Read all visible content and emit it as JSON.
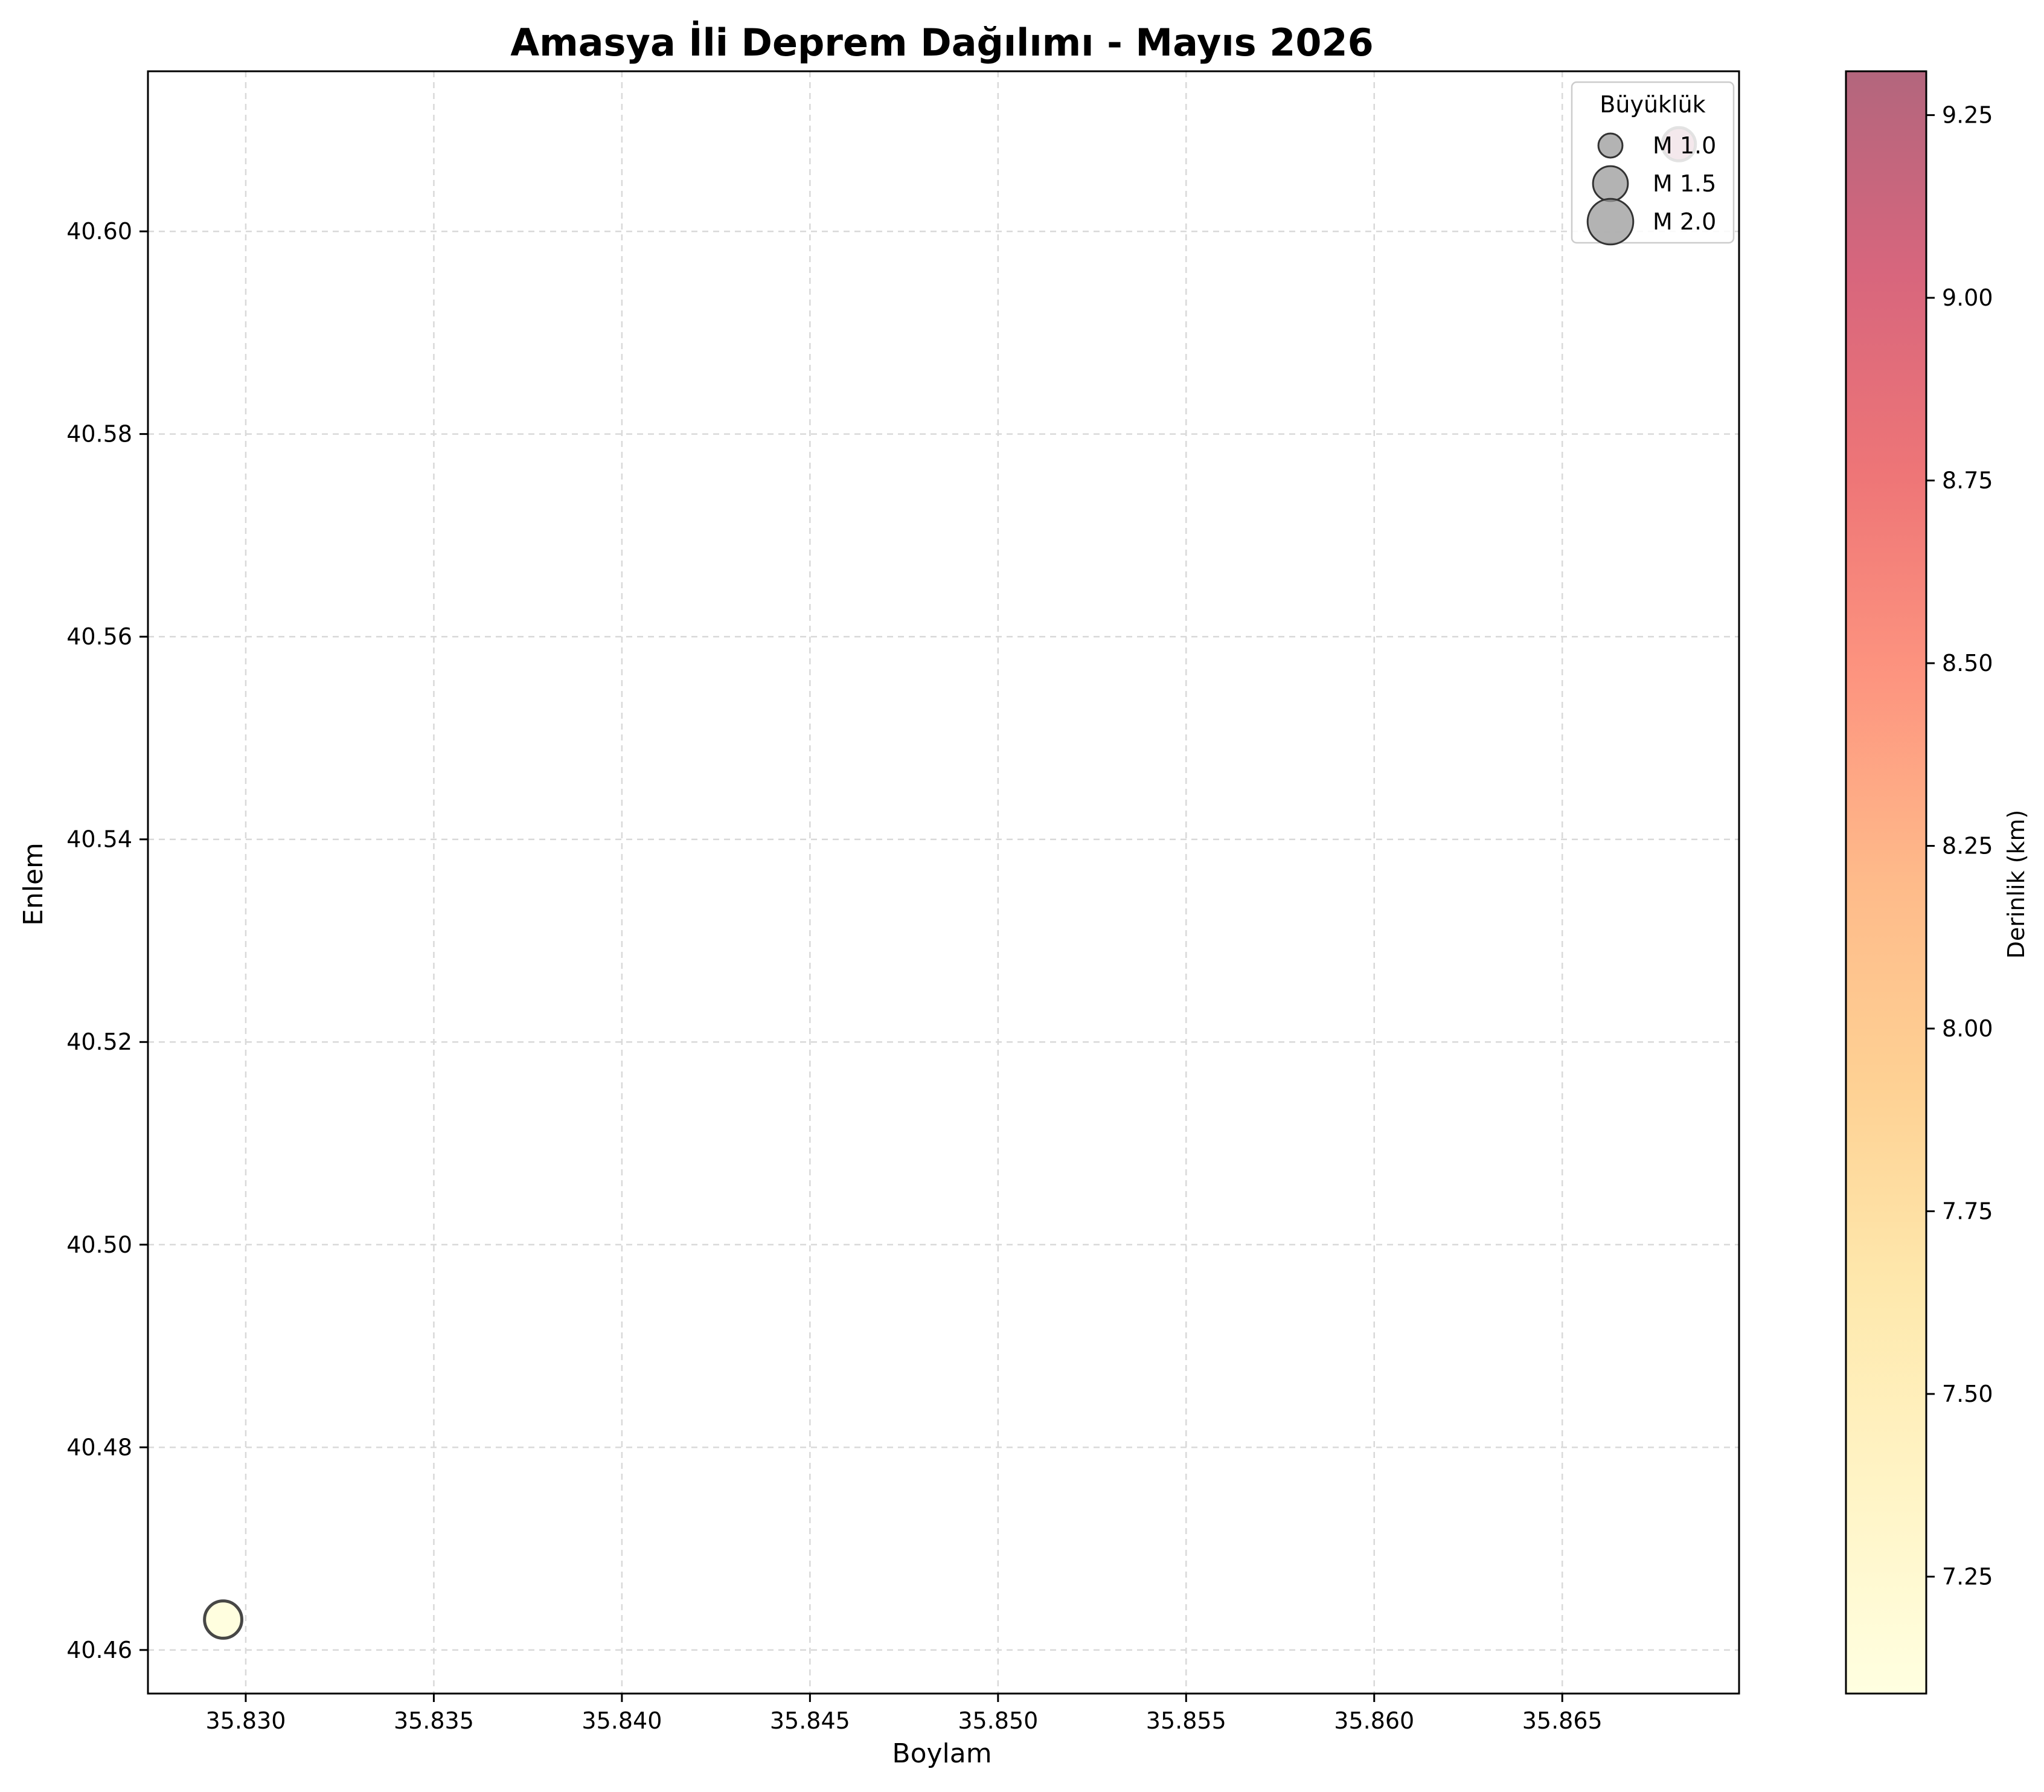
{
  "chart_data": {
    "type": "scatter",
    "title": "Amasya İli Deprem Dağılımı - Mayıs 2026",
    "xlabel": "Boylam",
    "ylabel": "Enlem",
    "xlim": [
      35.8274,
      35.8697
    ],
    "ylim": [
      40.4557,
      40.6158
    ],
    "x_ticks": [
      "35.830",
      "35.835",
      "35.840",
      "35.845",
      "35.850",
      "35.855",
      "35.860",
      "35.865"
    ],
    "x_tick_values": [
      35.83,
      35.835,
      35.84,
      35.845,
      35.85,
      35.855,
      35.86,
      35.865
    ],
    "y_ticks": [
      "40.46",
      "40.48",
      "40.50",
      "40.52",
      "40.54",
      "40.56",
      "40.58",
      "40.60"
    ],
    "y_tick_values": [
      40.46,
      40.48,
      40.5,
      40.52,
      40.54,
      40.56,
      40.58,
      40.6
    ],
    "grid": true,
    "points": [
      {
        "x": 35.8294,
        "y": 40.463,
        "magnitude": 1.7,
        "depth": 7.1
      },
      {
        "x": 35.8681,
        "y": 40.6086,
        "magnitude": 1.5,
        "depth": 9.3
      }
    ],
    "legend": {
      "title": "Büyüklük",
      "placement": "top-right",
      "entries": [
        {
          "label": "M 1.0",
          "magnitude": 1.0
        },
        {
          "label": "M 1.5",
          "magnitude": 1.5
        },
        {
          "label": "M 2.0",
          "magnitude": 2.0
        }
      ]
    },
    "colorbar": {
      "label": "Derinlik (km)",
      "range": [
        7.09,
        9.31
      ],
      "ticks": [
        "7.25",
        "7.50",
        "7.75",
        "8.00",
        "8.25",
        "8.50",
        "8.75",
        "9.00",
        "9.25"
      ],
      "tick_values": [
        7.25,
        7.5,
        7.75,
        8.0,
        8.25,
        8.5,
        8.75,
        9.0,
        9.25
      ],
      "colormap": "YlOrRd-like",
      "colors": [
        "#ffffcc",
        "#ffeda0",
        "#fed976",
        "#feb24c",
        "#fd8d3c",
        "#fc4e2a",
        "#e31a1c",
        "#bd0026",
        "#800026"
      ]
    },
    "marker_edge_color": "#333333",
    "legend_marker_color": "#999999"
  }
}
